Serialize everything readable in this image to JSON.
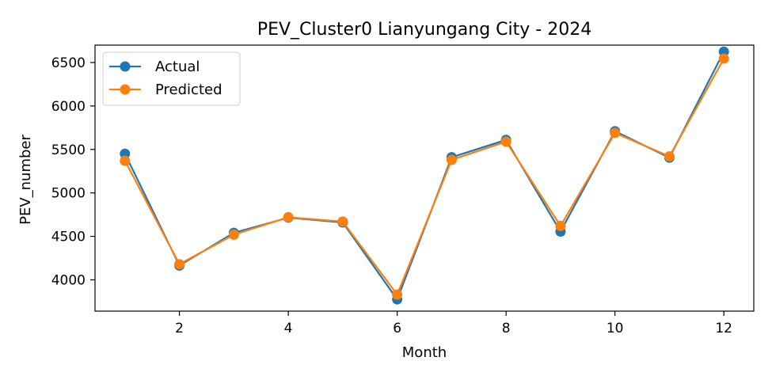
{
  "chart_data": {
    "type": "line",
    "title": "PEV_Cluster0 Lianyungang City - 2024",
    "xlabel": "Month",
    "ylabel": "PEV_number",
    "x": [
      1,
      2,
      3,
      4,
      5,
      6,
      7,
      8,
      9,
      10,
      11,
      12
    ],
    "xlim": [
      0.45,
      12.55
    ],
    "ylim": [
      3640,
      6700
    ],
    "xticks": [
      2,
      4,
      6,
      8,
      10,
      12
    ],
    "yticks": [
      4000,
      4500,
      5000,
      5500,
      6000,
      6500
    ],
    "grid": false,
    "legend_position": "upper-left",
    "series": [
      {
        "name": "Actual",
        "color": "#1f77b4",
        "marker": "circle",
        "values": [
          5450,
          4165,
          4540,
          4715,
          4660,
          3775,
          5410,
          5610,
          4555,
          5710,
          5405,
          6625
        ]
      },
      {
        "name": "Predicted",
        "color": "#ff7f0e",
        "marker": "circle",
        "values": [
          5370,
          4180,
          4520,
          4720,
          4670,
          3830,
          5380,
          5590,
          4620,
          5690,
          5420,
          6545
        ]
      }
    ]
  }
}
